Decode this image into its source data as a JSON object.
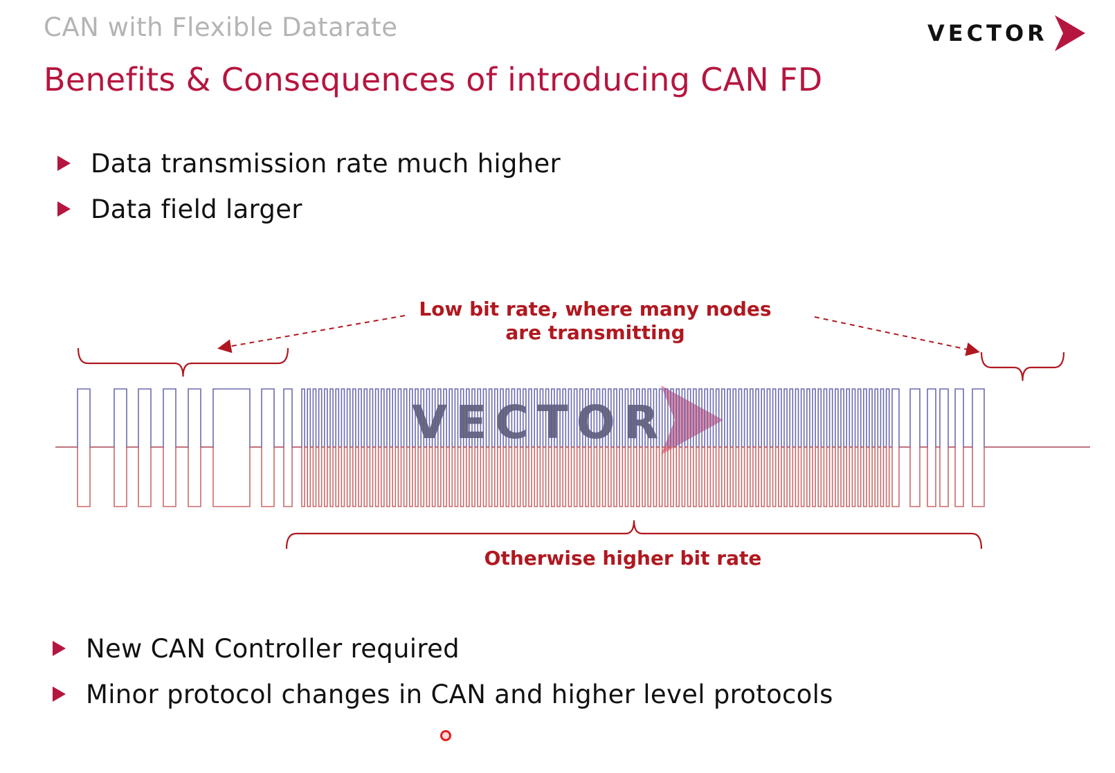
{
  "header": {
    "overline": "CAN with Flexible Datarate",
    "title": "Benefits & Consequences of introducing CAN FD",
    "logo_text": "VECTOR"
  },
  "bullets_top": [
    "Data transmission rate much higher",
    "Data field larger"
  ],
  "diagram": {
    "low_rate_label_line1": "Low bit rate, where many nodes",
    "low_rate_label_line2": "are transmitting",
    "high_rate_label": "Otherwise higher bit rate",
    "watermark_text": "VECTOR",
    "colors": {
      "can_high": "#5a5aa8",
      "can_low": "#c85858",
      "annotation": "#b01820",
      "accent": "#b5163f"
    }
  },
  "bullets_bottom": [
    "New CAN Controller required",
    "Minor protocol changes in CAN and higher level protocols"
  ]
}
